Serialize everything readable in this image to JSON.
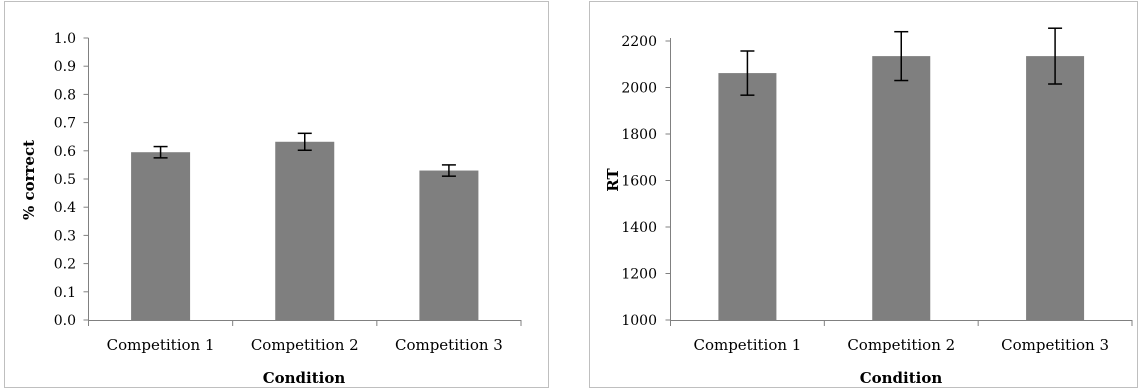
{
  "chart_data": [
    {
      "type": "bar",
      "categories": [
        "Competition 1",
        "Competition 2",
        "Competition 3"
      ],
      "values": [
        0.595,
        0.632,
        0.53
      ],
      "error": [
        0.02,
        0.03,
        0.02
      ],
      "xlabel": "Condition",
      "ylabel": "% correct",
      "ylim": [
        0.0,
        1.0
      ],
      "yticks": [
        "0.0",
        "0.1",
        "0.2",
        "0.3",
        "0.4",
        "0.5",
        "0.6",
        "0.7",
        "0.8",
        "0.9",
        "1.0"
      ],
      "bar_color": "#7f7f7f",
      "grid": false
    },
    {
      "type": "bar",
      "categories": [
        "Competition 1",
        "Competition 2",
        "Competition 3"
      ],
      "values": [
        2062,
        2135,
        2135
      ],
      "error": [
        95,
        105,
        120
      ],
      "xlabel": "Condition",
      "ylabel": "RT",
      "ylim": [
        1000,
        2200
      ],
      "yticks": [
        "1000",
        "1200",
        "1400",
        "1600",
        "1800",
        "2000",
        "2200"
      ],
      "bar_color": "#7f7f7f",
      "grid": false
    }
  ]
}
